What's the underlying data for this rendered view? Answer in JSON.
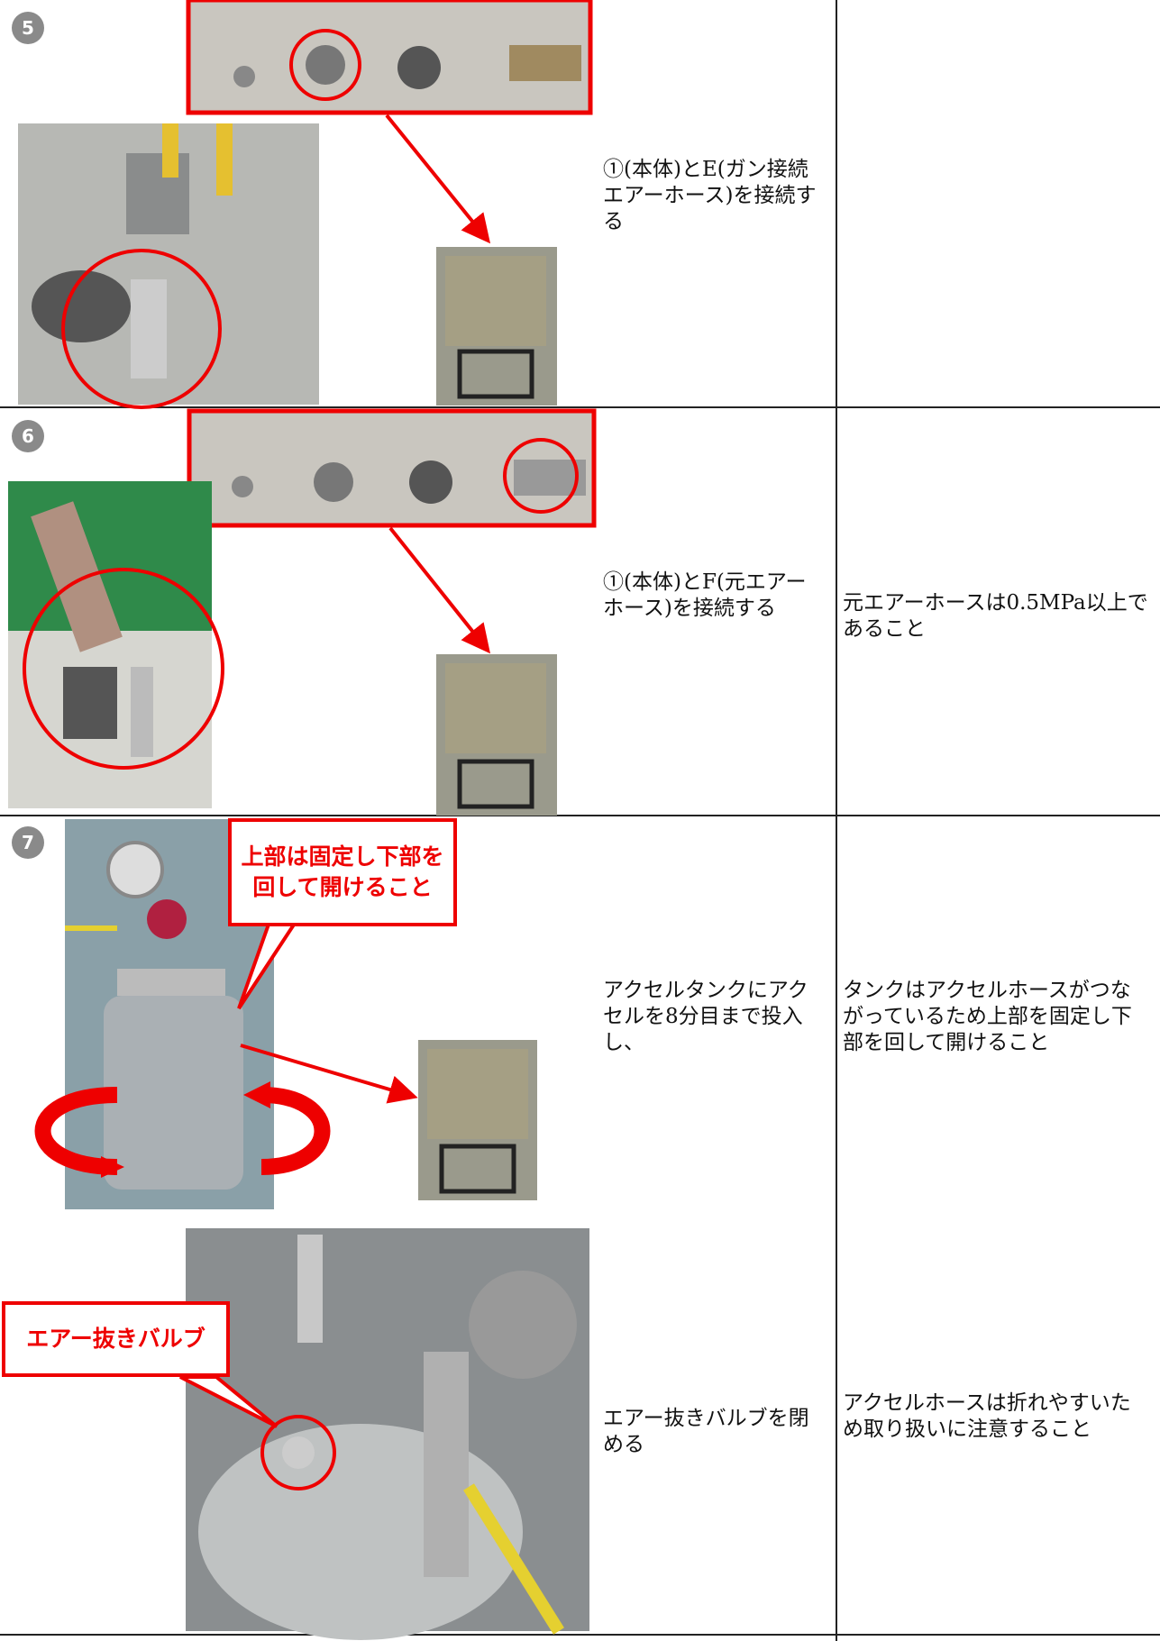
{
  "steps": [
    {
      "number": "5",
      "items": [
        {
          "instruction": "①(本体)とE(ガン接続エアーホース)を接続する"
        }
      ]
    },
    {
      "number": "6",
      "items": [
        {
          "instruction": "①(本体)とF(元エアーホース)を接続する",
          "note": "元エアーホースは0.5MPa以上であること"
        }
      ]
    },
    {
      "number": "7",
      "items": [
        {
          "callout": "上部は固定し下部を回して開けること",
          "instruction": "アクセルタンクにアクセルを8分目まで投入し、",
          "note": "タンクはアクセルホースがつながっているため上部を固定し下部を回して開けること"
        },
        {
          "callout": "エアー抜きバルブ",
          "instruction": "エアー抜きバルブを閉める",
          "note": "アクセルホースは折れやすいため取り扱いに注意すること"
        }
      ]
    }
  ]
}
